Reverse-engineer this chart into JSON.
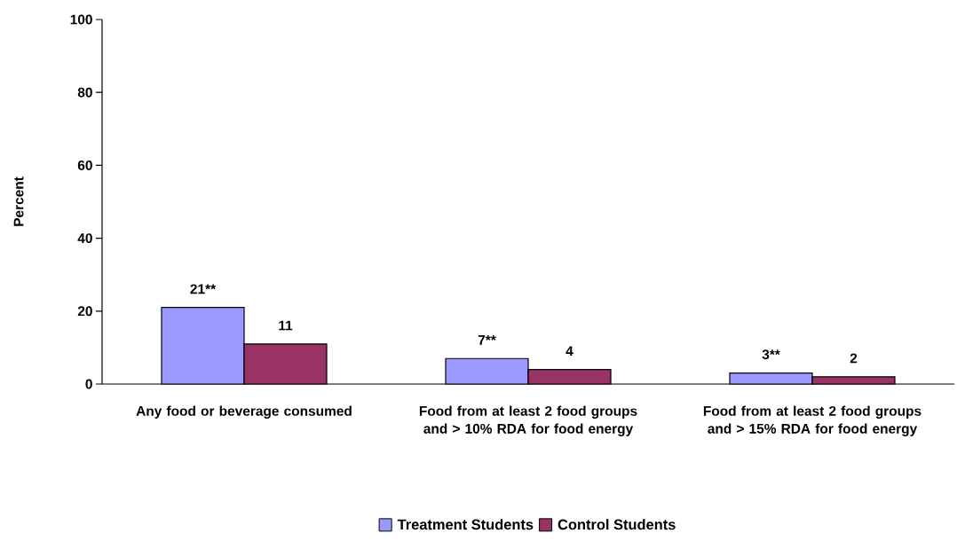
{
  "chart_data": {
    "type": "bar",
    "ylabel": "Percent",
    "categories": [
      "Any food or beverage consumed",
      "Food from at least 2 food groups and > 10% RDA for food energy",
      "Food from at least 2 food groups and > 15% RDA for food energy"
    ],
    "series": [
      {
        "name": "Treatment Students",
        "color": "#9999ff",
        "values": [
          21,
          7,
          3
        ],
        "value_labels": [
          "21**",
          "7**",
          "3**"
        ]
      },
      {
        "name": "Control Students",
        "color": "#993366",
        "values": [
          11,
          4,
          2
        ],
        "value_labels": [
          "11",
          "4",
          "2"
        ]
      }
    ],
    "ylim": [
      0,
      100
    ],
    "yticks": [
      0,
      20,
      40,
      60,
      80,
      100
    ],
    "grid": false,
    "legend": "bottom"
  }
}
